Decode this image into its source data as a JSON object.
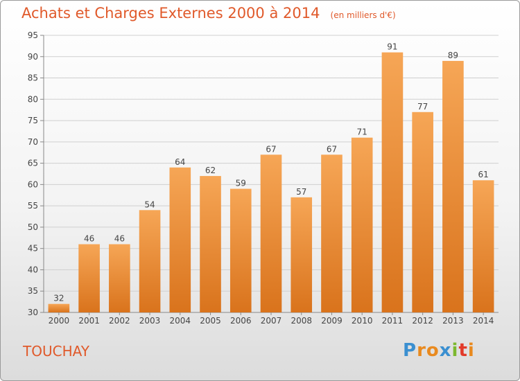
{
  "header": {
    "title": "Achats et Charges Externes 2000 à 2014",
    "subtitle": "(en milliers d'€)"
  },
  "footer": {
    "place": "TOUCHAY",
    "logo": [
      "P",
      "r",
      "o",
      "x",
      "i",
      "t",
      "i"
    ],
    "logo_colors": [
      "#3a8fd0",
      "#e98a1f",
      "#e98a1f",
      "#3a8fd0",
      "#7cb82f",
      "#e23a2a",
      "#e98a1f"
    ]
  },
  "chart_data": {
    "type": "bar",
    "categories": [
      "2000",
      "2001",
      "2002",
      "2003",
      "2004",
      "2005",
      "2006",
      "2007",
      "2008",
      "2009",
      "2010",
      "2011",
      "2012",
      "2013",
      "2014"
    ],
    "values": [
      32,
      46,
      46,
      54,
      64,
      62,
      59,
      67,
      57,
      67,
      71,
      91,
      77,
      89,
      61
    ],
    "ylim": [
      30,
      95
    ],
    "yticks": [
      30,
      35,
      40,
      45,
      50,
      55,
      60,
      65,
      70,
      75,
      80,
      85,
      90,
      95
    ],
    "grid": true,
    "bar_color": "#f0913a"
  }
}
